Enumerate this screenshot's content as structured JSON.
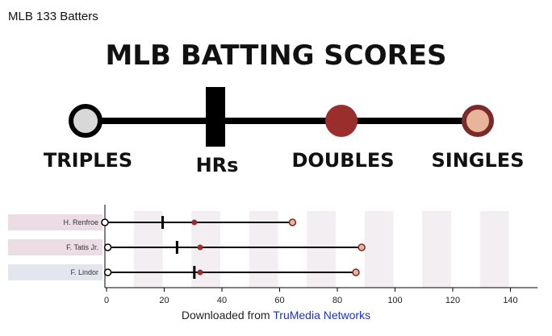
{
  "header": {
    "top_label": "MLB 133 Batters"
  },
  "legend": {
    "title": "MLB BATTING SCORES",
    "items": [
      {
        "label": "TRIPLES",
        "marker": "open-circle"
      },
      {
        "label": "HRs",
        "marker": "bar"
      },
      {
        "label": "DOUBLES",
        "marker": "dark-red-circle"
      },
      {
        "label": "SINGLES",
        "marker": "peach-circle"
      }
    ]
  },
  "colors": {
    "triples_fill": "#d8d8d8",
    "doubles_fill": "#9a2e2c",
    "singles_fill": "#e8b49a",
    "singles_stroke": "#7a2a2a",
    "stripe": "#f3eef1",
    "row_bg": [
      "#ecdde5",
      "#ecdde5",
      "#e3e5ef"
    ],
    "link": "#1a33c9"
  },
  "chart_data": {
    "type": "dot-range",
    "xlim": [
      0,
      150
    ],
    "ticks": [
      0,
      20,
      40,
      60,
      80,
      100,
      120,
      140
    ],
    "tick_labels": [
      "0",
      "20",
      "40",
      "60",
      "80",
      "100",
      "120",
      "140"
    ],
    "players": [
      {
        "name": "H. Renfroe",
        "triples": 0,
        "hrs": 20,
        "doubles": 31,
        "singles": 65
      },
      {
        "name": "F. Tatis Jr.",
        "triples": 1,
        "hrs": 25,
        "doubles": 33,
        "singles": 89
      },
      {
        "name": "F. Lindor",
        "triples": 1,
        "hrs": 31,
        "doubles": 33,
        "singles": 87
      }
    ]
  },
  "footer": {
    "prefix": "Downloaded from ",
    "link": "TruMedia Networks"
  }
}
